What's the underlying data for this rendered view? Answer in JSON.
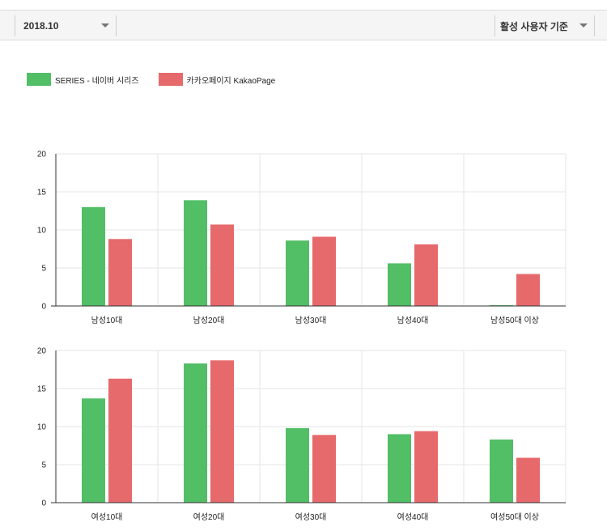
{
  "filters": {
    "period": "2018.10",
    "basis": "활성 사용자 기준"
  },
  "colors": {
    "series": "#52be66",
    "kakaopage": "#e6696c",
    "grid": "#e6e6e6",
    "axis": "#333333"
  },
  "legend": [
    {
      "label": "SERIES - 네이버 시리즈"
    },
    {
      "label": "카카오페이지 KakaoPage"
    }
  ],
  "chart_data": [
    {
      "type": "bar",
      "title": "",
      "categories": [
        "남성10대",
        "남성20대",
        "남성30대",
        "남성40대",
        "남성50대 이상"
      ],
      "series": [
        {
          "name": "SERIES - 네이버 시리즈",
          "values": [
            13.0,
            13.9,
            8.6,
            5.6,
            0.1
          ]
        },
        {
          "name": "카카오페이지 KakaoPage",
          "values": [
            8.8,
            10.7,
            9.1,
            8.1,
            4.2
          ]
        }
      ],
      "ylim": [
        0,
        20
      ],
      "yticks": [
        0,
        5,
        10,
        15,
        20
      ],
      "xlabel": "",
      "ylabel": ""
    },
    {
      "type": "bar",
      "title": "",
      "categories": [
        "여성10대",
        "여성20대",
        "여성30대",
        "여성40대",
        "여성50대 이상"
      ],
      "series": [
        {
          "name": "SERIES - 네이버 시리즈",
          "values": [
            13.7,
            18.3,
            9.8,
            9.0,
            8.3
          ]
        },
        {
          "name": "카카오페이지 KakaoPage",
          "values": [
            16.3,
            18.7,
            8.9,
            9.4,
            5.9
          ]
        }
      ],
      "ylim": [
        0,
        20
      ],
      "yticks": [
        0,
        5,
        10,
        15,
        20
      ],
      "xlabel": "",
      "ylabel": ""
    }
  ]
}
